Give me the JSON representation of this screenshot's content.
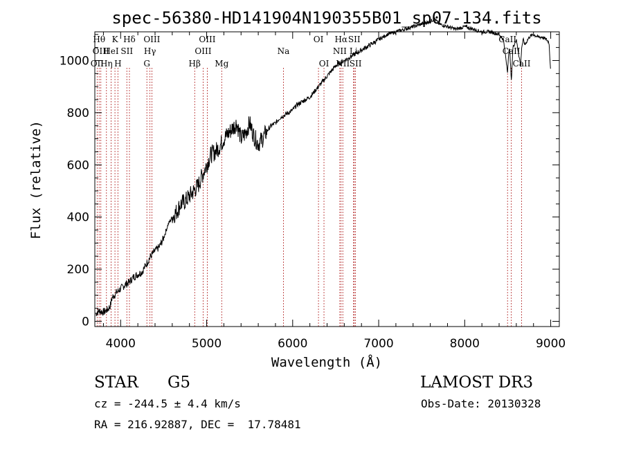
{
  "chart_data": {
    "type": "line",
    "title": "spec-56380-HD141904N190355B01_sp07-134.fits",
    "xlabel": "Wavelength (Å)",
    "ylabel": "Flux (relative)",
    "xlim": [
      3700,
      9100
    ],
    "ylim": [
      -20,
      1110
    ],
    "xticks": [
      4000,
      5000,
      6000,
      7000,
      8000,
      9000
    ],
    "xtick_labels": [
      "4000",
      "5000",
      "6000",
      "7000",
      "8000",
      "9000"
    ],
    "yticks": [
      0,
      200,
      400,
      600,
      800,
      1000
    ],
    "ytick_labels": [
      "0",
      "200",
      "400",
      "600",
      "800",
      "1000"
    ],
    "series": [
      {
        "name": "flux",
        "x": [
          3710,
          3750,
          3800,
          3850,
          3880,
          3900,
          3950,
          4000,
          4050,
          4100,
          4150,
          4200,
          4250,
          4300,
          4350,
          4400,
          4450,
          4500,
          4550,
          4600,
          4650,
          4700,
          4750,
          4800,
          4850,
          4900,
          4950,
          5000,
          5050,
          5100,
          5150,
          5200,
          5250,
          5300,
          5350,
          5400,
          5450,
          5500,
          5550,
          5600,
          5650,
          5700,
          5750,
          5800,
          5850,
          5900,
          5950,
          6000,
          6050,
          6100,
          6150,
          6200,
          6250,
          6300,
          6350,
          6400,
          6450,
          6500,
          6550,
          6600,
          6650,
          6700,
          6750,
          6800,
          6900,
          7000,
          7100,
          7200,
          7300,
          7400,
          7500,
          7600,
          7650,
          7700,
          7800,
          7900,
          8000,
          8100,
          8200,
          8300,
          8400,
          8450,
          8498,
          8520,
          8542,
          8560,
          8600,
          8650,
          8662,
          8680,
          8700,
          8750,
          8800,
          8850,
          8900,
          8950,
          8980,
          9000
        ],
        "y": [
          30,
          40,
          35,
          45,
          60,
          90,
          110,
          125,
          140,
          150,
          170,
          180,
          190,
          220,
          250,
          270,
          285,
          320,
          370,
          400,
          420,
          450,
          460,
          480,
          500,
          520,
          560,
          600,
          640,
          650,
          670,
          700,
          720,
          740,
          760,
          700,
          720,
          760,
          710,
          680,
          700,
          730,
          750,
          760,
          780,
          790,
          800,
          810,
          830,
          840,
          850,
          860,
          880,
          900,
          920,
          940,
          960,
          980,
          990,
          1000,
          1010,
          1020,
          1030,
          1040,
          1060,
          1080,
          1100,
          1110,
          1120,
          1130,
          1140,
          1150,
          1160,
          1140,
          1130,
          1120,
          1130,
          1120,
          1110,
          1110,
          1100,
          1080,
          960,
          1060,
          920,
          1050,
          1080,
          980,
          1050,
          1080,
          1060,
          1090,
          1100,
          1090,
          1090,
          1080,
          1070,
          960
        ]
      }
    ],
    "line_markers": [
      {
        "label": "OII",
        "x": 3727,
        "row": 3
      },
      {
        "label": "Hθ",
        "x": 3750,
        "row": 1
      },
      {
        "label": "OIII",
        "x": 3770,
        "row": 2
      },
      {
        "label": "Hη",
        "x": 3835,
        "row": 3
      },
      {
        "label": "HeI",
        "x": 3889,
        "row": 2
      },
      {
        "label": "K",
        "x": 3934,
        "row": 1
      },
      {
        "label": "H",
        "x": 3968,
        "row": 3
      },
      {
        "label": "SII",
        "x": 4072,
        "row": 2
      },
      {
        "label": "Hδ",
        "x": 4102,
        "row": 1
      },
      {
        "label": "G",
        "x": 4305,
        "row": 3
      },
      {
        "label": "OIII",
        "x": 4363,
        "row": 1
      },
      {
        "label": "Hγ",
        "x": 4341,
        "row": 2
      },
      {
        "label": "Hβ",
        "x": 4861,
        "row": 3
      },
      {
        "label": "OIII",
        "x": 4959,
        "row": 2
      },
      {
        "label": "OIII",
        "x": 5007,
        "row": 1
      },
      {
        "label": "Mg",
        "x": 5175,
        "row": 3
      },
      {
        "label": "Na",
        "x": 5893,
        "row": 2
      },
      {
        "label": "OI",
        "x": 6300,
        "row": 1
      },
      {
        "label": "OI",
        "x": 6364,
        "row": 3
      },
      {
        "label": "Hα",
        "x": 6563,
        "row": 1
      },
      {
        "label": "NII",
        "x": 6548,
        "row": 2
      },
      {
        "label": "NII",
        "x": 6583,
        "row": 3
      },
      {
        "label": "SII",
        "x": 6716,
        "row": 1
      },
      {
        "label": "Li",
        "x": 6708,
        "row": 2
      },
      {
        "label": "SII",
        "x": 6731,
        "row": 3
      },
      {
        "label": "CaII",
        "x": 8498,
        "row": 1
      },
      {
        "label": "CaII",
        "x": 8542,
        "row": 2
      },
      {
        "label": "CaII",
        "x": 8662,
        "row": 3
      }
    ]
  },
  "footer": {
    "object_class": "STAR",
    "subclass": "G5",
    "survey": "LAMOST DR3",
    "cz_line": "cz = -244.5 ± 4.4 km/s",
    "obs_date": "Obs-Date: 20130328",
    "coords": "RA = 216.92887, DEC =  17.78481"
  }
}
